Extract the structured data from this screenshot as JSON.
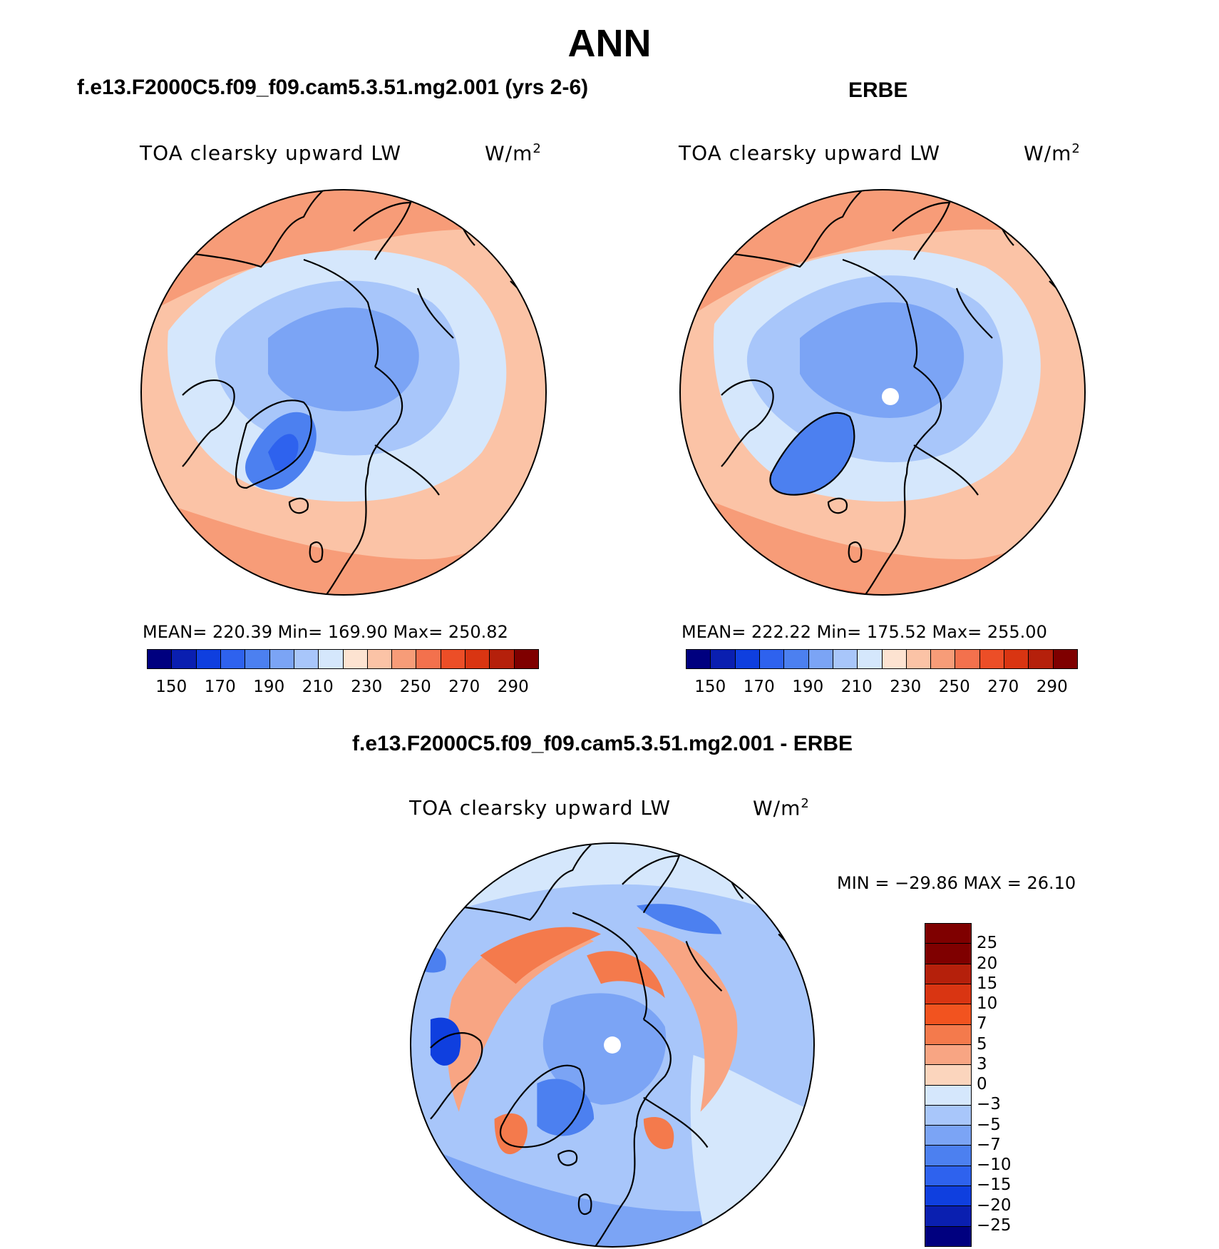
{
  "page_title": "ANN",
  "panels": [
    {
      "case_title": "f.e13.F2000C5.f09_f09.cam5.3.51.mg2.001 (yrs 2-6)",
      "variable": "TOA clearsky upward LW",
      "units_base": "W/m",
      "units_sup": "2",
      "stats": "MEAN= 220.39   Min= 169.90   Max= 250.82",
      "colorbar_ticks": [
        "150",
        "170",
        "190",
        "210",
        "230",
        "250",
        "270",
        "290"
      ]
    },
    {
      "case_title": "ERBE",
      "variable": "TOA clearsky upward LW",
      "units_base": "W/m",
      "units_sup": "2",
      "stats": "MEAN= 222.22   Min= 175.52   Max= 255.00",
      "colorbar_ticks": [
        "150",
        "170",
        "190",
        "210",
        "230",
        "250",
        "270",
        "290"
      ]
    }
  ],
  "diff_panel": {
    "case_title": "f.e13.F2000C5.f09_f09.cam5.3.51.mg2.001 - ERBE",
    "variable": "TOA clearsky upward LW",
    "units_base": "W/m",
    "units_sup": "2",
    "stats": "MIN = −29.86 MAX =   26.10",
    "colorbar_ticks": [
      "25",
      "20",
      "15",
      "10",
      "7",
      "5",
      "3",
      "0",
      "−3",
      "−5",
      "−7",
      "−10",
      "−15",
      "−20",
      "−25"
    ]
  },
  "colors": {
    "abs_scale": [
      "#00007f",
      "#0a1fb0",
      "#0f3fdf",
      "#2e62ee",
      "#4c80f0",
      "#7ba4f5",
      "#a8c6fa",
      "#d5e7fc",
      "#fde3d1",
      "#fbc3a6",
      "#f79c78",
      "#f3714d",
      "#ec4e27",
      "#d93512",
      "#b5200b",
      "#7f0000"
    ],
    "diff_scale": [
      "#7f0000",
      "#b5200b",
      "#d93512",
      "#f2531f",
      "#f47a4c",
      "#f8a583",
      "#fbd5bd",
      "#d5e7fc",
      "#a8c6fa",
      "#7ba4f5",
      "#4c80f0",
      "#2e62ee",
      "#0f3fdf",
      "#0a1fb0",
      "#00007f"
    ]
  }
}
